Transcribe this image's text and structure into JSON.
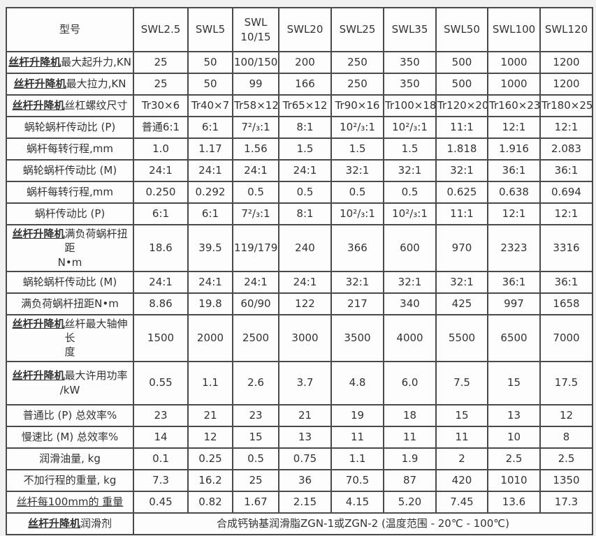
{
  "page": {
    "background_color": "#f0f0f0",
    "table_background_color": "#fdfdfd",
    "border_color": "#4a4a4a",
    "text_color": "#333333"
  },
  "table": {
    "header": {
      "label": "型号",
      "models": [
        "SWL2.5",
        "SWL5",
        "SWL\n10/15",
        "SWL20",
        "SWL25",
        "SWL35",
        "SWL50",
        "SWL100",
        "SWL120"
      ]
    },
    "rows": [
      {
        "label_bold": "丝杆升降机",
        "label": "最大起升力,KN",
        "values": [
          "25",
          "50",
          "100/150",
          "200",
          "250",
          "350",
          "500",
          "1000",
          "1200"
        ]
      },
      {
        "label_bold": "丝杆升降机",
        "label": "最大拉力,KN",
        "values": [
          "25",
          "50",
          "99",
          "166",
          "250",
          "350",
          "500",
          "1000",
          "1200"
        ]
      },
      {
        "label_bold": "丝杆升降机",
        "label": "丝杠螺纹尺寸",
        "values": [
          "Tr30×6",
          "Tr40×7",
          "Tr58×12",
          "Tr65×12",
          "Tr90×16",
          "Tr100×18",
          "Tr120×20",
          "Tr160×23",
          "Tr180×25"
        ]
      },
      {
        "label": "蜗轮蜗杆传动比 (P)",
        "values": [
          "普通6:1",
          "6:1",
          "7²/₃:1",
          "8:1",
          "10²/₃:1",
          "10²/₃:1",
          "11:1",
          "12:1",
          "12:1"
        ]
      },
      {
        "label": "蜗杆每转行程,mm",
        "values": [
          "1.0",
          "1.17",
          "1.56",
          "1.5",
          "1.5",
          "1.5",
          "1.818",
          "1.916",
          "2.083"
        ]
      },
      {
        "label": "蜗轮蜗杆传动比 (M)",
        "values": [
          "24:1",
          "24:1",
          "24:1",
          "24:1",
          "32:1",
          "32:1",
          "32:1",
          "36:1",
          "36:1"
        ]
      },
      {
        "label": "蜗杆每转行程,mm",
        "values": [
          "0.250",
          "0.292",
          "0.5",
          "0.5",
          "0.5",
          "0.5",
          "0.625",
          "0.638",
          "0.694"
        ]
      },
      {
        "label": "蜗杆传动比 (P)",
        "values": [
          "6:1",
          "6:1",
          "7²/₃:1",
          "8:1",
          "10²/₃:1",
          "10²/₃:1",
          "11:1",
          "12:1",
          "12:1"
        ]
      },
      {
        "label_bold": "丝杆升降机",
        "label": "满负荷蜗杆扭距\nN•m",
        "tall": true,
        "values": [
          "18.6",
          "39.5",
          "119/179",
          "240",
          "366",
          "600",
          "970",
          "2323",
          "3316"
        ]
      },
      {
        "label": "蜗轮蜗杆传动比 (M)",
        "values": [
          "24:1",
          "24:1",
          "24:1",
          "24:1",
          "32:1",
          "32:1",
          "32:1",
          "36:1",
          "36:1"
        ]
      },
      {
        "label": "满负荷蜗杆扭距N•m",
        "values": [
          "8.86",
          "19.8",
          "60/90",
          "122",
          "217",
          "340",
          "425",
          "997",
          "1658"
        ]
      },
      {
        "label_bold": "丝杆升降机",
        "label": "丝杆最大轴伸长\n度",
        "tall": true,
        "values": [
          "1500",
          "2000",
          "2500",
          "3000",
          "3500",
          "4000",
          "5500",
          "6500",
          "7000"
        ]
      },
      {
        "label_bold": "丝杆升降机",
        "label": "最大许用功率\n/kW",
        "tall": true,
        "values": [
          "0.55",
          "1.1",
          "2.6",
          "3.7",
          "4.8",
          "6.0",
          "7.5",
          "15",
          "17.5"
        ]
      },
      {
        "label": "普通比 (P) 总效率%",
        "values": [
          "23",
          "21",
          "23",
          "21",
          "19",
          "18",
          "15",
          "13",
          "12"
        ]
      },
      {
        "label": "慢速比 (M) 总效率%",
        "values": [
          "14",
          "12",
          "15",
          "13",
          "11",
          "11",
          "11",
          "10",
          "8"
        ]
      },
      {
        "label": "润滑油量, kg",
        "values": [
          "0.1",
          "0.25",
          "0.5",
          "0.75",
          "1.1",
          "1.9",
          "2",
          "2.5",
          "2.5"
        ]
      },
      {
        "label": "不加行程的重量, kg",
        "values": [
          "7.3",
          "16.2",
          "25",
          "36",
          "70.5",
          "87",
          "420",
          "1010",
          "1350"
        ]
      },
      {
        "label": "丝杆每100mm的 重量",
        "label_underline": true,
        "values": [
          "0.45",
          "0.82",
          "1.67",
          "2.15",
          "4.15",
          "5.20",
          "7.45",
          "13.6",
          "17.3"
        ]
      },
      {
        "label_bold": "丝杆升降机",
        "label": "润滑剂",
        "span_value": "合成钙钠基润滑脂ZGN-1或ZGN-2 (温度范围 - 20℃ - 100℃)"
      }
    ]
  }
}
